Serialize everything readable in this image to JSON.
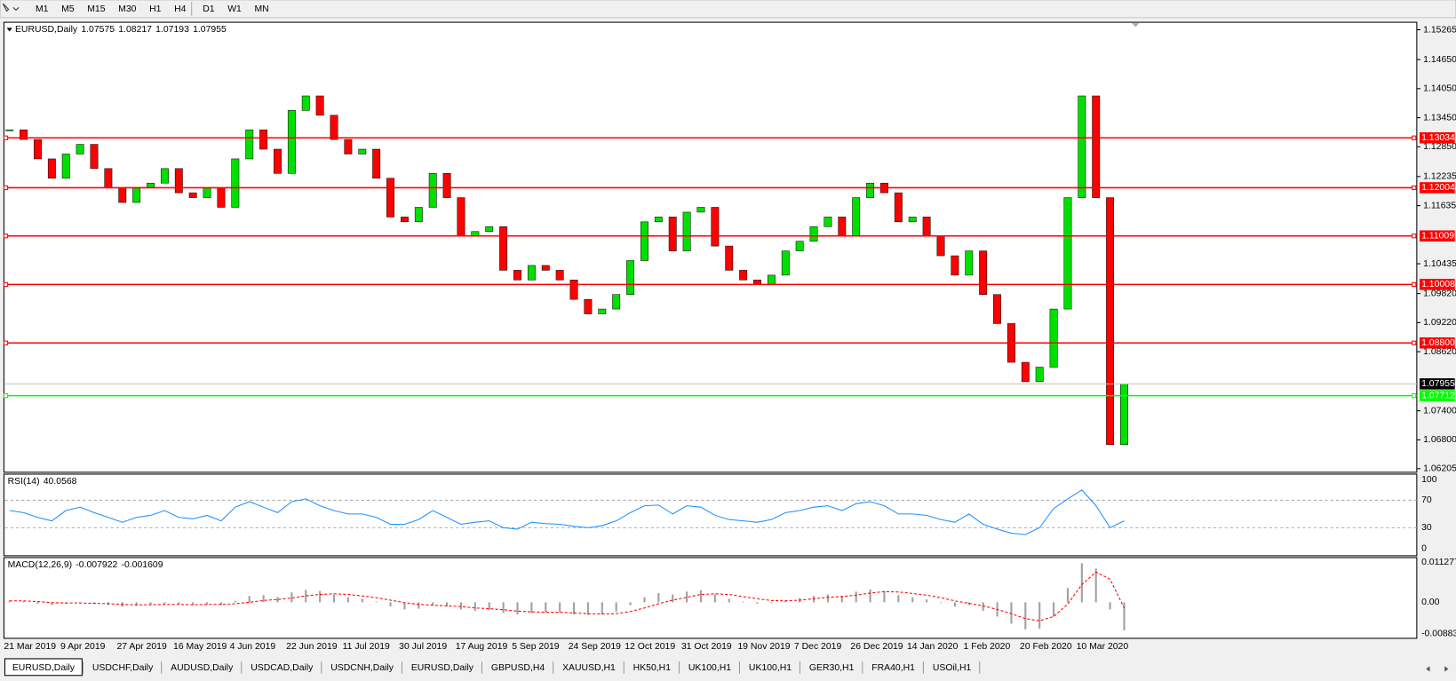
{
  "toolbar": {
    "timeframes": [
      "M1",
      "M5",
      "M15",
      "M30",
      "H1",
      "H4",
      "D1",
      "W1",
      "MN"
    ]
  },
  "chart_data": [
    {
      "type": "candlestick",
      "title": "EURUSD,Daily",
      "quote": [
        1.07575,
        1.08217,
        1.07193,
        1.07955
      ],
      "up_color": "#00e000",
      "down_color": "#ff0000",
      "categories": [
        "21 Mar 2019",
        null,
        null,
        null,
        "9 Apr 2019",
        null,
        null,
        null,
        "27 Apr 2019",
        null,
        null,
        null,
        "16 May 2019",
        null,
        null,
        null,
        "4 Jun 2019",
        null,
        null,
        null,
        "22 Jun 2019",
        null,
        null,
        null,
        "11 Jul 2019",
        null,
        null,
        null,
        "30 Jul 2019",
        null,
        null,
        null,
        "17 Aug 2019",
        null,
        null,
        null,
        "5 Sep 2019",
        null,
        null,
        null,
        "24 Sep 2019",
        null,
        null,
        null,
        "12 Oct 2019",
        null,
        null,
        null,
        "31 Oct 2019",
        null,
        null,
        null,
        "19 Nov 2019",
        null,
        null,
        null,
        "7 Dec 2019",
        null,
        null,
        null,
        "26 Dec 2019",
        null,
        null,
        null,
        "14 Jan 2020",
        null,
        null,
        null,
        "1 Feb 2020",
        null,
        null,
        null,
        "20 Feb 2020",
        null,
        null,
        null,
        "10 Mar 2020",
        null,
        null,
        null
      ],
      "closes": [
        1.132,
        1.13,
        1.126,
        1.122,
        1.127,
        1.129,
        1.124,
        1.12,
        1.117,
        1.12,
        1.121,
        1.124,
        1.119,
        1.118,
        1.12,
        1.116,
        1.126,
        1.132,
        1.128,
        1.123,
        1.136,
        1.139,
        1.135,
        1.13,
        1.127,
        1.128,
        1.122,
        1.114,
        1.113,
        1.116,
        1.123,
        1.118,
        1.11,
        1.111,
        1.112,
        1.103,
        1.101,
        1.104,
        1.103,
        1.101,
        1.097,
        1.094,
        1.095,
        1.098,
        1.105,
        1.113,
        1.114,
        1.107,
        1.115,
        1.116,
        1.108,
        1.103,
        1.101,
        1.1,
        1.102,
        1.107,
        1.109,
        1.112,
        1.114,
        1.11,
        1.118,
        1.121,
        1.119,
        1.113,
        1.114,
        1.11,
        1.106,
        1.102,
        1.107,
        1.098,
        1.092,
        1.084,
        1.08,
        1.083,
        1.095,
        1.118,
        1.139,
        1.118,
        1.067,
        1.07955
      ],
      "ylim": [
        1.0615,
        1.1542
      ],
      "yticks": [
        1.15265,
        {
          "value": 1.1465,
          "label": "1.14650"
        },
        {
          "value": 1.1405,
          "label": "1.14050"
        },
        {
          "value": 1.1345,
          "label": "1.13450"
        },
        {
          "value": 1.1285,
          "label": "1.12850"
        },
        1.12235,
        1.11635,
        1.10435,
        {
          "value": 1.0982,
          "label": "1.09820"
        },
        {
          "value": 1.0922,
          "label": "1.09220"
        },
        {
          "value": 1.0862,
          "label": "1.08620"
        },
        {
          "value": 1.074,
          "label": "1.07400"
        },
        {
          "value": 1.068,
          "label": "1.06800"
        },
        1.06205
      ],
      "levels": [
        {
          "price": 1.13034,
          "color": "#ff0000"
        },
        {
          "price": 1.12004,
          "color": "#ff0000"
        },
        {
          "price": 1.11009,
          "color": "#ff0000"
        },
        {
          "price": 1.10008,
          "color": "#ff0000"
        },
        {
          "price": {
            "value": 1.088,
            "label": "1.08800"
          },
          "color": "#ff0000"
        },
        {
          "price": 1.07712,
          "color": "#00ff00"
        }
      ]
    },
    {
      "type": "line",
      "title": "RSI(14)",
      "readout": 40.0568,
      "color": "#1e90ff",
      "values": [
        55,
        52,
        45,
        40,
        55,
        60,
        52,
        45,
        38,
        45,
        48,
        55,
        45,
        43,
        48,
        40,
        60,
        68,
        60,
        52,
        68,
        72,
        62,
        55,
        50,
        50,
        45,
        35,
        35,
        42,
        55,
        45,
        35,
        38,
        40,
        30,
        28,
        38,
        36,
        35,
        32,
        30,
        33,
        40,
        52,
        62,
        63,
        50,
        62,
        60,
        48,
        42,
        40,
        38,
        42,
        52,
        55,
        60,
        62,
        55,
        65,
        68,
        62,
        50,
        50,
        48,
        42,
        38,
        50,
        35,
        28,
        22,
        20,
        30,
        58,
        72,
        85,
        62,
        30,
        40.0568
      ],
      "ylim": [
        0,
        100
      ],
      "yticks": [
        100,
        70,
        30,
        0
      ]
    },
    {
      "type": "macd",
      "title": "MACD(12,26,9)",
      "readout": [
        -0.007922,
        -0.001609
      ],
      "hist_color": "#a0a0a0",
      "signal_color": "#ff0000",
      "values": [
        0.0005,
        0.0003,
        -0.0004,
        -0.0008,
        -0.0005,
        -0.0002,
        -0.0004,
        -0.0008,
        -0.0012,
        -0.001,
        -0.0008,
        -0.0004,
        -0.0006,
        -0.0008,
        -0.0006,
        -0.0008,
        0.0004,
        0.0018,
        0.002,
        0.0015,
        0.0028,
        0.0035,
        0.0032,
        0.0022,
        0.0014,
        0.001,
        0.0002,
        -0.0012,
        -0.002,
        -0.0018,
        -0.0008,
        -0.0012,
        -0.002,
        -0.0024,
        -0.0022,
        -0.003,
        -0.0034,
        -0.003,
        -0.0028,
        -0.0028,
        -0.0034,
        -0.0036,
        -0.0034,
        -0.0026,
        -0.0008,
        0.0014,
        0.0026,
        0.0022,
        0.003,
        0.0034,
        0.0022,
        0.001,
        0.0002,
        -0.0004,
        -0.0002,
        0.0006,
        0.0012,
        0.0018,
        0.0022,
        0.0018,
        0.003,
        0.0036,
        0.0032,
        0.002,
        0.0014,
        0.0008,
        -0.0002,
        -0.0012,
        -0.0008,
        -0.0024,
        -0.004,
        -0.006,
        -0.0076,
        -0.0074,
        -0.004,
        0.004,
        0.011,
        0.0095,
        -0.002,
        -0.007922
      ],
      "signal": [
        0.0004,
        0.0004,
        0.0002,
        -0.0001,
        -0.0002,
        -0.0002,
        -0.0003,
        -0.0004,
        -0.0006,
        -0.0007,
        -0.0007,
        -0.0006,
        -0.0006,
        -0.0007,
        -0.0006,
        -0.0006,
        -0.0004,
        0.0,
        0.0005,
        0.0008,
        0.0012,
        0.0018,
        0.0022,
        0.0024,
        0.0022,
        0.0018,
        0.0013,
        0.0006,
        -0.0001,
        -0.0006,
        -0.0008,
        -0.001,
        -0.0012,
        -0.0016,
        -0.0018,
        -0.0021,
        -0.0025,
        -0.0027,
        -0.0028,
        -0.0028,
        -0.003,
        -0.0032,
        -0.0033,
        -0.0032,
        -0.0026,
        -0.0016,
        -0.0004,
        0.0006,
        0.0014,
        0.0022,
        0.0024,
        0.0022,
        0.0016,
        0.001,
        0.0005,
        0.0004,
        0.0006,
        0.001,
        0.0014,
        0.0016,
        0.002,
        0.0026,
        0.003,
        0.0029,
        0.0025,
        0.002,
        0.0013,
        0.0004,
        -0.0003,
        -0.001,
        -0.002,
        -0.0032,
        -0.0046,
        -0.0052,
        -0.004,
        -0.0005,
        0.005,
        0.0085,
        0.0065,
        -0.001609
      ],
      "ylim": [
        -0.008837,
        0.011277
      ],
      "yticks": [
        0.011277,
        {
          "value": 0,
          "label": "0.00"
        },
        -0.008837
      ]
    }
  ],
  "tabs": [
    "EURUSD,Daily",
    "USDCHF,Daily",
    "AUDUSD,Daily",
    "USDCAD,Daily",
    "USDCNH,Daily",
    "EURUSD,Daily",
    "GBPUSD,H4",
    "XAUUSD,H1",
    "HK50,H1",
    "UK100,H1",
    "UK100,H1",
    "GER30,H1",
    "FRA40,H1",
    "USOil,H1"
  ],
  "active_tab": 0
}
